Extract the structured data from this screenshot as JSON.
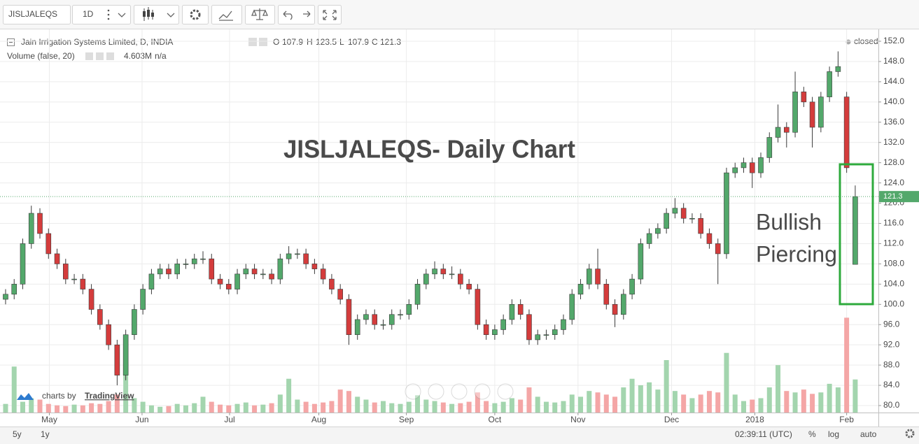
{
  "toolbar": {
    "symbol": "JISLJALEQS",
    "interval": "1D"
  },
  "chart_data": {
    "type": "candlestick",
    "title": "Jain Irrigation Systems Limited, D, INDIA",
    "ohlc_labels": [
      "O",
      "H",
      "L",
      "C"
    ],
    "status": "closed",
    "annotation": "JISLJALEQS- Daily Chart",
    "pattern_label": [
      "Bullish",
      "Piercing"
    ],
    "up_color": "#53a86b",
    "down_color": "#d43c3c",
    "open": [
      101,
      102,
      104,
      112,
      118,
      114,
      110,
      108,
      105,
      105,
      103,
      99,
      96,
      92,
      86,
      94,
      99,
      103,
      106,
      107,
      106,
      108,
      108,
      109,
      109,
      105,
      104,
      103,
      106,
      107,
      106,
      106,
      105,
      109,
      110,
      110,
      108,
      107,
      105,
      103,
      101,
      94,
      97,
      98,
      96,
      96,
      98,
      98,
      100,
      104,
      106,
      107,
      106,
      106,
      104,
      103,
      96,
      94,
      95,
      97,
      100,
      98,
      93,
      94,
      94,
      95,
      97,
      102,
      104,
      107,
      104,
      100,
      98,
      102,
      105,
      112,
      114,
      115,
      118,
      119,
      117,
      117,
      114,
      112,
      110,
      126,
      127,
      128,
      126,
      129,
      133,
      135,
      134,
      142,
      140,
      135,
      141,
      146,
      141,
      107.9
    ],
    "high": [
      103,
      105,
      113,
      119.5,
      119,
      115,
      111,
      109,
      106,
      106,
      104,
      100,
      97,
      93,
      95,
      100,
      104,
      107,
      108,
      108,
      109,
      109,
      110,
      110.5,
      110,
      106,
      105,
      107,
      108,
      108,
      107,
      107,
      110,
      111.5,
      111,
      111,
      109,
      108,
      106,
      104,
      102,
      98,
      99,
      99,
      97,
      99,
      99,
      101,
      105,
      107,
      108.5,
      108,
      107.5,
      107,
      105,
      104,
      97,
      96,
      98,
      101,
      101,
      99,
      95,
      95,
      96,
      98,
      103,
      105,
      108,
      111,
      105,
      101,
      103,
      106,
      113,
      115,
      116,
      119,
      121,
      120,
      118,
      118,
      115,
      113,
      127,
      128,
      129,
      129,
      130,
      134,
      139.5,
      136,
      146,
      143,
      141,
      142,
      147,
      150,
      142,
      123.5
    ],
    "low": [
      100,
      101,
      103,
      111,
      113,
      109,
      107,
      104,
      104,
      102,
      98,
      95,
      91,
      84,
      85,
      93,
      98,
      102,
      105,
      105,
      105,
      107,
      107,
      108,
      104,
      103,
      102,
      102,
      105,
      105,
      105,
      104,
      104,
      108,
      109,
      107,
      106,
      104,
      102,
      100,
      92,
      93,
      96,
      95,
      95,
      95,
      97,
      97,
      99,
      103,
      105,
      105,
      105,
      103,
      102,
      95,
      93,
      93,
      94,
      96,
      97,
      92,
      92,
      93,
      93,
      94,
      96,
      101,
      103,
      103,
      99,
      95.5,
      97,
      101,
      104,
      111,
      113,
      114,
      117,
      116,
      116,
      113,
      111,
      104,
      109,
      125,
      126,
      123,
      125,
      128,
      132,
      131,
      133,
      139,
      131,
      134,
      140,
      145,
      126,
      107.9
    ],
    "close": [
      102,
      104,
      112,
      118,
      114,
      110,
      108,
      105,
      105,
      103,
      99,
      96,
      92,
      86,
      94,
      99,
      103,
      106,
      107,
      106,
      108,
      108,
      109,
      109,
      105,
      104,
      103,
      106,
      107,
      106,
      106,
      105,
      109,
      110,
      110,
      108,
      107,
      105,
      103,
      101,
      94,
      97,
      98,
      96,
      96,
      98,
      98,
      100,
      104,
      106,
      107,
      106,
      106,
      104,
      103,
      96,
      94,
      95,
      97,
      100,
      98,
      93,
      94,
      94,
      95,
      97,
      102,
      104,
      107,
      104,
      100,
      98,
      102,
      105,
      112,
      114,
      115,
      118,
      119,
      117,
      117,
      114,
      112,
      110,
      126,
      127,
      128,
      126,
      129,
      133,
      135,
      134,
      142,
      140,
      135,
      141,
      146,
      147,
      127,
      121.3
    ],
    "volume": {
      "name": "Volume (false, 20)",
      "value_text": "4.603M",
      "ma_text": "n/a",
      "up_color": "#a3d5ae",
      "down_color": "#f4a6a6",
      "lim": [
        0,
        16
      ],
      "values": [
        1.2,
        6.4,
        1.5,
        2.0,
        1.8,
        1.2,
        1.0,
        0.9,
        1.1,
        1.0,
        1.3,
        1.2,
        1.6,
        2.5,
        7.0,
        2.0,
        1.5,
        1.0,
        0.8,
        0.9,
        1.2,
        1.0,
        1.3,
        2.2,
        1.5,
        1.1,
        1.0,
        1.2,
        1.4,
        1.0,
        1.1,
        1.3,
        2.5,
        4.7,
        1.8,
        1.5,
        1.2,
        1.4,
        1.6,
        3.2,
        3.0,
        2.2,
        1.8,
        1.4,
        1.6,
        1.3,
        1.2,
        1.5,
        2.4,
        1.8,
        1.6,
        1.4,
        1.2,
        1.3,
        1.5,
        2.8,
        1.6,
        1.3,
        1.5,
        2.0,
        1.8,
        3.5,
        2.2,
        1.5,
        1.4,
        1.6,
        2.5,
        2.2,
        3.0,
        2.8,
        2.5,
        2.2,
        3.5,
        4.7,
        3.8,
        4.2,
        3.2,
        7.3,
        3.0,
        2.5,
        2.0,
        2.5,
        3.0,
        2.8,
        8.3,
        2.5,
        1.6,
        1.8,
        2.0,
        3.5,
        6.6,
        3.0,
        2.8,
        3.2,
        2.6,
        2.8,
        4.0,
        3.5,
        13.2,
        4.603
      ]
    },
    "ylim": [
      78.62,
      154.35
    ],
    "yticks": [
      {
        "value": 80,
        "label": "80.0"
      },
      {
        "value": 84,
        "label": "84.0"
      },
      {
        "value": 88,
        "label": "88.0"
      },
      {
        "value": 92,
        "label": "92.0"
      },
      {
        "value": 96,
        "label": "96.0"
      },
      {
        "value": 100,
        "label": "100.0"
      },
      {
        "value": 104,
        "label": "104.0"
      },
      {
        "value": 108,
        "label": "108.0"
      },
      {
        "value": 112,
        "label": "112.0"
      },
      {
        "value": 116,
        "label": "116.0"
      },
      {
        "value": 120,
        "label": "120.0"
      },
      {
        "value": 124,
        "label": "124.0"
      },
      {
        "value": 128,
        "label": "128.0"
      },
      {
        "value": 132,
        "label": "132.0"
      },
      {
        "value": 136,
        "label": "136.0"
      },
      {
        "value": 140,
        "label": "140.0"
      },
      {
        "value": 144,
        "label": "144.0"
      },
      {
        "value": 148,
        "label": "148.0"
      },
      {
        "value": 152,
        "label": "152.0"
      }
    ],
    "xlim": [
      -0.65,
      101.7
    ],
    "xticks": [
      {
        "value": 5.1,
        "label": "May"
      },
      {
        "value": 15.9,
        "label": "Jun"
      },
      {
        "value": 26.1,
        "label": "Jul"
      },
      {
        "value": 36.5,
        "label": "Aug"
      },
      {
        "value": 46.7,
        "label": "Sep"
      },
      {
        "value": 57,
        "label": "Oct"
      },
      {
        "value": 66.7,
        "label": "Nov"
      },
      {
        "value": 77.6,
        "label": "Dec"
      },
      {
        "value": 87.3,
        "label": "2018"
      },
      {
        "value": 98,
        "label": "Feb"
      }
    ],
    "grid": true,
    "branding": [
      "charts by",
      "TradingView"
    ]
  },
  "bottom_bar": {
    "ranges": [
      "5y",
      "1y"
    ],
    "time": "02:39:11 (UTC)",
    "options": [
      "%",
      "log",
      "auto"
    ]
  }
}
